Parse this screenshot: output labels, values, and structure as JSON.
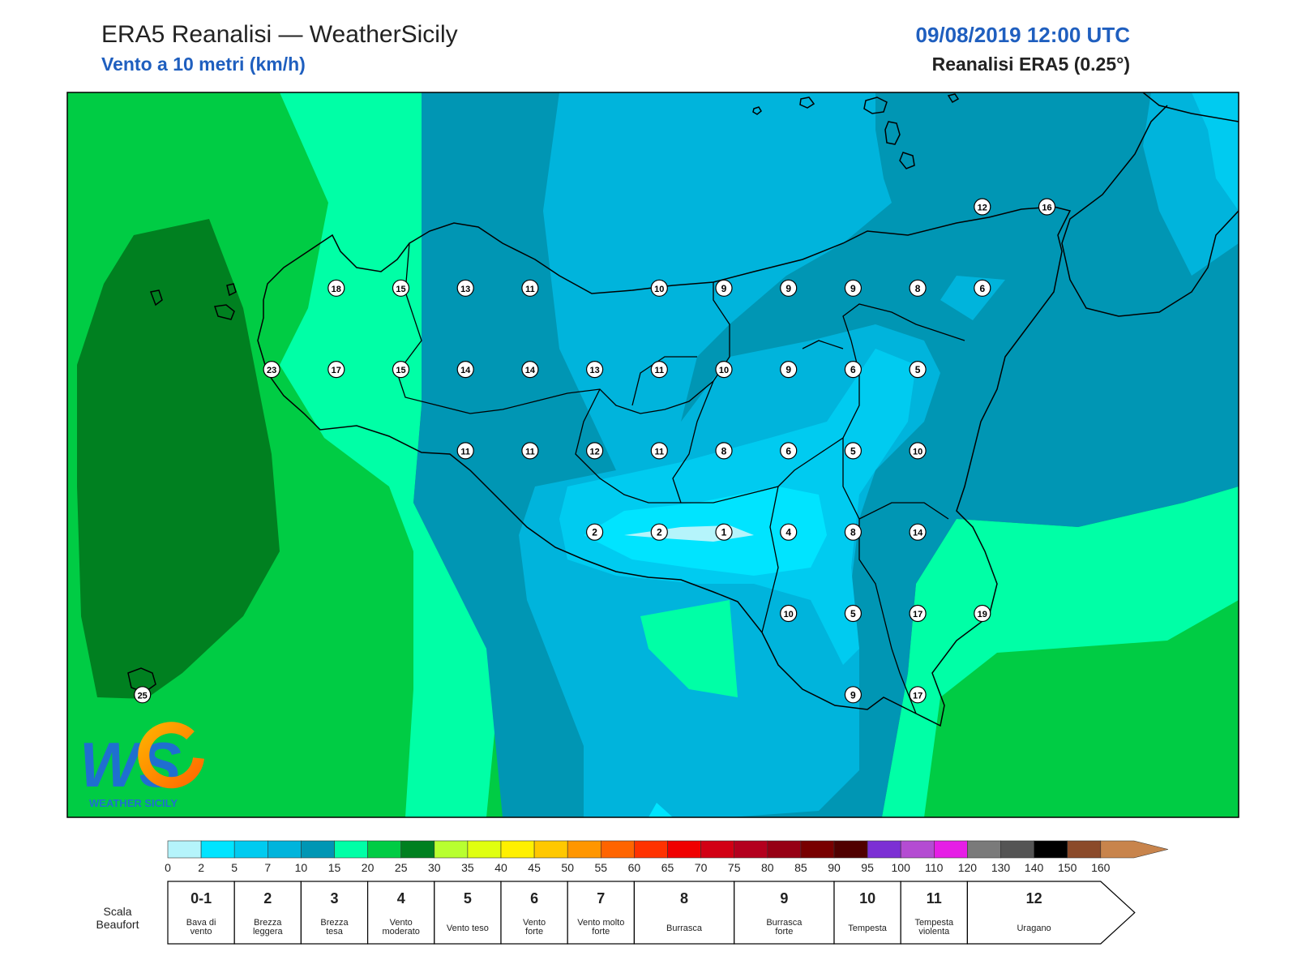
{
  "header": {
    "title": "ERA5 Reanalisi — WeatherSicily",
    "subtitle": "Vento a 10 metri (km/h)",
    "datetime": "09/08/2019 12:00 UTC",
    "dataset": "Reanalisi ERA5 (0.25°)"
  },
  "logo": {
    "letters": "WS",
    "text": "WEATHER SICILY"
  },
  "station_values": [
    {
      "label": "12",
      "col": 14,
      "row": 0
    },
    {
      "label": "16",
      "col": 15,
      "row": 0
    },
    {
      "label": "18",
      "col": 4,
      "row": 1
    },
    {
      "label": "15",
      "col": 5,
      "row": 1
    },
    {
      "label": "13",
      "col": 6,
      "row": 1
    },
    {
      "label": "11",
      "col": 7,
      "row": 1
    },
    {
      "label": "10",
      "col": 9,
      "row": 1
    },
    {
      "label": "9",
      "col": 10,
      "row": 1
    },
    {
      "label": "9",
      "col": 11,
      "row": 1
    },
    {
      "label": "9",
      "col": 12,
      "row": 1
    },
    {
      "label": "8",
      "col": 13,
      "row": 1
    },
    {
      "label": "6",
      "col": 14,
      "row": 1
    },
    {
      "label": "23",
      "col": 3,
      "row": 2
    },
    {
      "label": "17",
      "col": 4,
      "row": 2
    },
    {
      "label": "15",
      "col": 5,
      "row": 2
    },
    {
      "label": "14",
      "col": 6,
      "row": 2
    },
    {
      "label": "14",
      "col": 7,
      "row": 2
    },
    {
      "label": "13",
      "col": 8,
      "row": 2
    },
    {
      "label": "11",
      "col": 9,
      "row": 2
    },
    {
      "label": "10",
      "col": 10,
      "row": 2
    },
    {
      "label": "9",
      "col": 11,
      "row": 2
    },
    {
      "label": "6",
      "col": 12,
      "row": 2
    },
    {
      "label": "5",
      "col": 13,
      "row": 2
    },
    {
      "label": "11",
      "col": 6,
      "row": 3
    },
    {
      "label": "11",
      "col": 7,
      "row": 3
    },
    {
      "label": "12",
      "col": 8,
      "row": 3
    },
    {
      "label": "11",
      "col": 9,
      "row": 3
    },
    {
      "label": "8",
      "col": 10,
      "row": 3
    },
    {
      "label": "6",
      "col": 11,
      "row": 3
    },
    {
      "label": "5",
      "col": 12,
      "row": 3
    },
    {
      "label": "10",
      "col": 13,
      "row": 3
    },
    {
      "label": "2",
      "col": 8,
      "row": 4
    },
    {
      "label": "2",
      "col": 9,
      "row": 4
    },
    {
      "label": "1",
      "col": 10,
      "row": 4
    },
    {
      "label": "4",
      "col": 11,
      "row": 4
    },
    {
      "label": "8",
      "col": 12,
      "row": 4
    },
    {
      "label": "14",
      "col": 13,
      "row": 4
    },
    {
      "label": "10",
      "col": 11,
      "row": 5
    },
    {
      "label": "5",
      "col": 12,
      "row": 5
    },
    {
      "label": "17",
      "col": 13,
      "row": 5
    },
    {
      "label": "19",
      "col": 14,
      "row": 5
    },
    {
      "label": "25",
      "col": 1,
      "row": 6
    },
    {
      "label": "9",
      "col": 12,
      "row": 6
    },
    {
      "label": "17",
      "col": 13,
      "row": 6
    }
  ],
  "color_scale": {
    "colors": [
      "#b5f4fb",
      "#00e4ff",
      "#00cbf0",
      "#00b4dc",
      "#0096b4",
      "#00ffa6",
      "#00cc44",
      "#008020",
      "#b8ff30",
      "#e0ff10",
      "#fff000",
      "#ffc800",
      "#ff9600",
      "#ff6400",
      "#ff3200",
      "#f00000",
      "#d20014",
      "#b4001e",
      "#960014",
      "#780000",
      "#500000",
      "#7c2fd4",
      "#b44cd2",
      "#e61ee6",
      "#7a7a7a",
      "#545454",
      "#000000",
      "#8b4a2a",
      "#c8844c"
    ],
    "tick_labels": [
      "0",
      "2",
      "5",
      "7",
      "10",
      "15",
      "20",
      "25",
      "30",
      "35",
      "40",
      "45",
      "50",
      "55",
      "60",
      "65",
      "70",
      "75",
      "80",
      "85",
      "90",
      "95",
      "100",
      "110",
      "120",
      "130",
      "140",
      "150",
      "160"
    ]
  },
  "beaufort": {
    "title_line1": "Scala",
    "title_line2": "Beaufort",
    "classes": [
      {
        "force": "0-1",
        "desc": [
          "Bava di",
          "vento"
        ]
      },
      {
        "force": "2",
        "desc": [
          "Brezza",
          "leggera"
        ]
      },
      {
        "force": "3",
        "desc": [
          "Brezza",
          "tesa"
        ]
      },
      {
        "force": "4",
        "desc": [
          "Vento",
          "moderato"
        ]
      },
      {
        "force": "5",
        "desc": [
          "Vento teso"
        ]
      },
      {
        "force": "6",
        "desc": [
          "Vento",
          "forte"
        ]
      },
      {
        "force": "7",
        "desc": [
          "Vento molto",
          "forte"
        ]
      },
      {
        "force": "8",
        "desc": [
          "Burrasca"
        ]
      },
      {
        "force": "9",
        "desc": [
          "Burrasca",
          "forte"
        ]
      },
      {
        "force": "10",
        "desc": [
          "Tempesta"
        ]
      },
      {
        "force": "11",
        "desc": [
          "Tempesta",
          "violenta"
        ]
      },
      {
        "force": "12",
        "desc": [
          "Uragano"
        ]
      }
    ]
  }
}
